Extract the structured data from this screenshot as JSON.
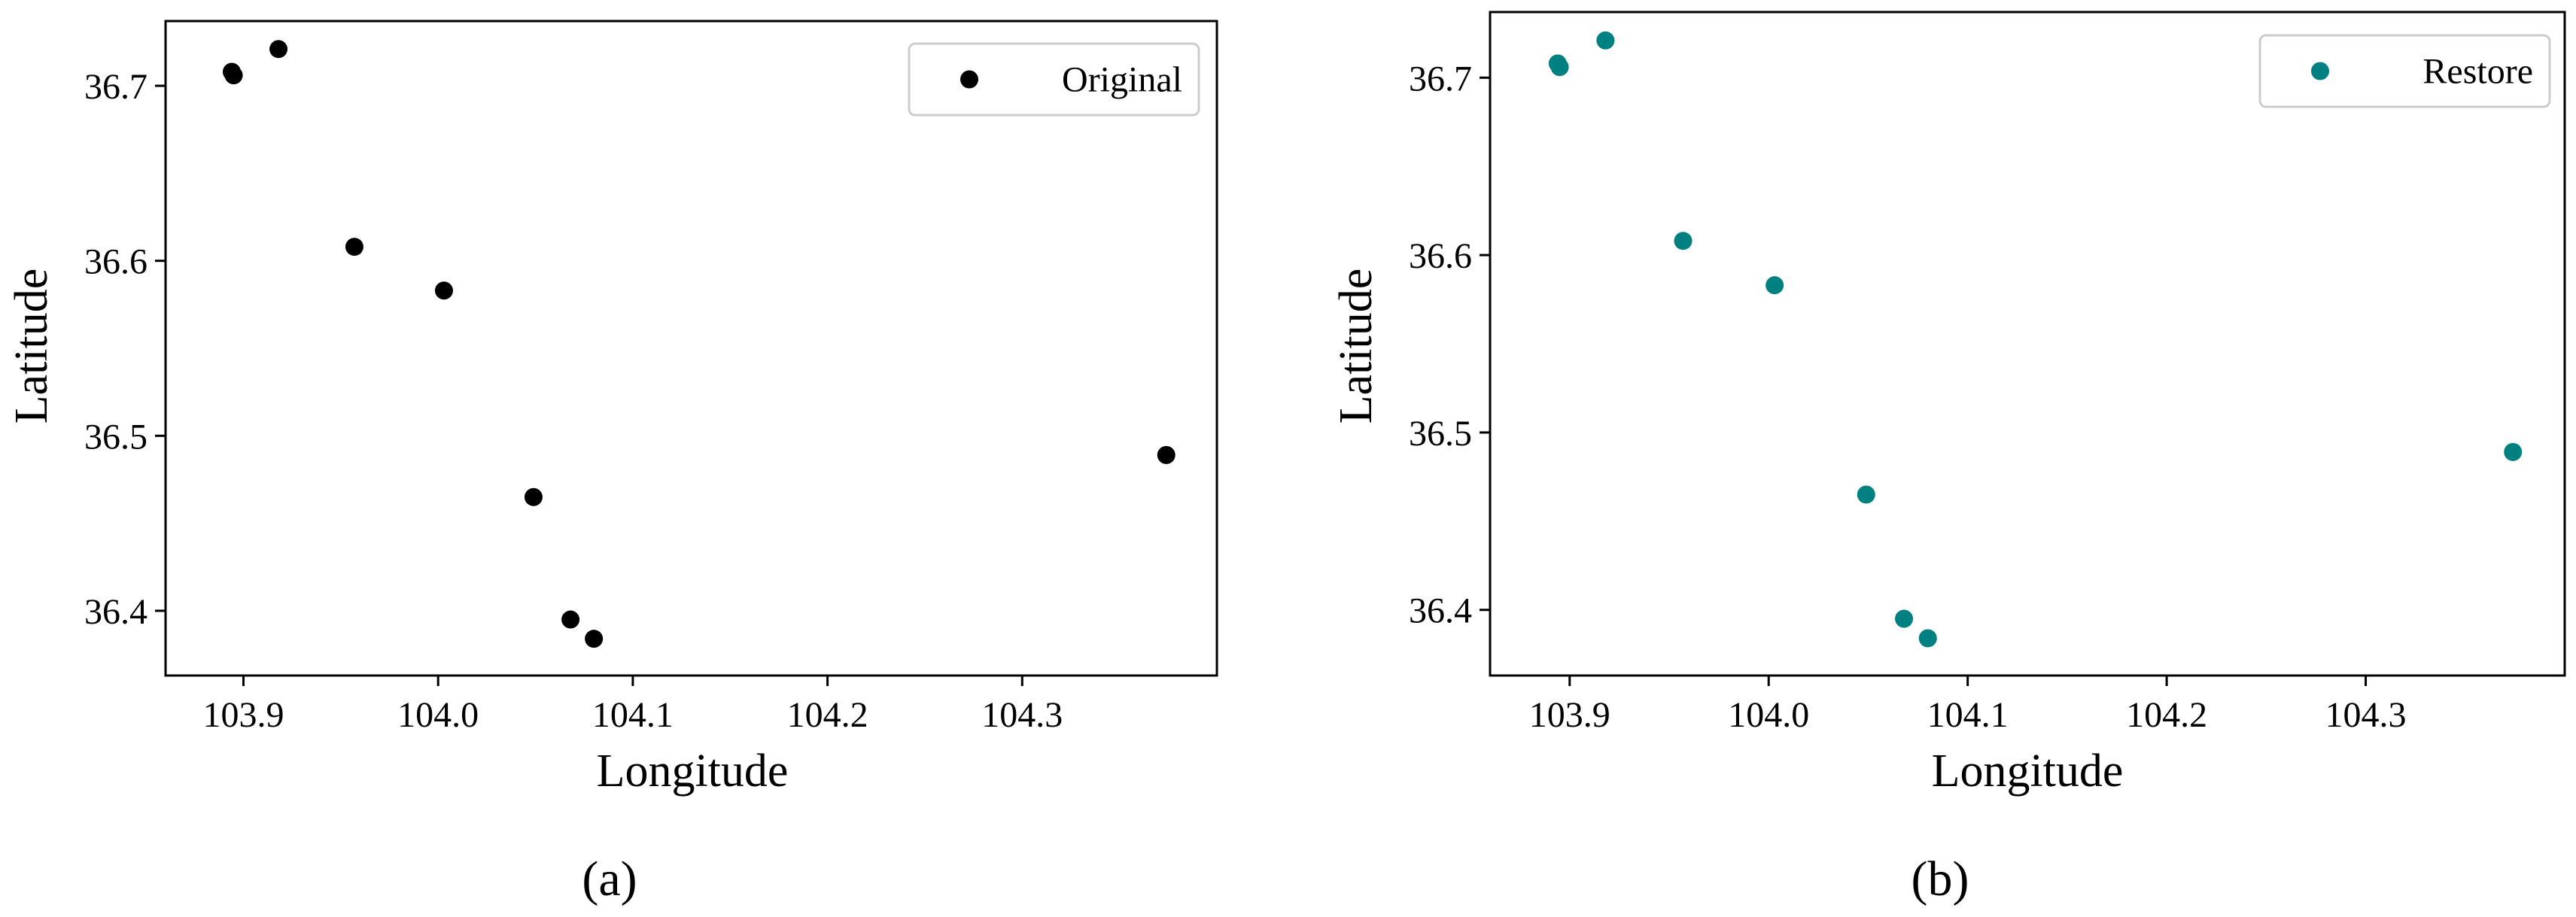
{
  "chart_data": [
    {
      "type": "scatter",
      "panel_label": "(a)",
      "xlabel": "Longitude",
      "ylabel": "Latitude",
      "xlim": [
        103.86,
        104.4
      ],
      "ylim": [
        36.363,
        36.737
      ],
      "xticks": [
        103.9,
        104.0,
        104.1,
        104.2,
        104.3
      ],
      "xtick_labels": [
        "103.9",
        "104.0",
        "104.1",
        "104.2",
        "104.3"
      ],
      "yticks": [
        36.4,
        36.5,
        36.6,
        36.7
      ],
      "ytick_labels": [
        "36.4",
        "36.5",
        "36.6",
        "36.7"
      ],
      "grid": false,
      "legend_position": "top-right",
      "series": [
        {
          "name": "Original",
          "color": "#000000",
          "x": [
            103.894,
            103.895,
            103.918,
            103.957,
            104.003,
            104.049,
            104.068,
            104.08,
            104.374
          ],
          "y": [
            36.708,
            36.706,
            36.721,
            36.608,
            36.583,
            36.465,
            36.395,
            36.384,
            36.489
          ]
        }
      ]
    },
    {
      "type": "scatter",
      "panel_label": "(b)",
      "xlabel": "Longitude",
      "ylabel": "Latitude",
      "xlim": [
        103.86,
        104.4
      ],
      "ylim": [
        36.363,
        36.737
      ],
      "xticks": [
        103.9,
        104.0,
        104.1,
        104.2,
        104.3
      ],
      "xtick_labels": [
        "103.9",
        "104.0",
        "104.1",
        "104.2",
        "104.3"
      ],
      "yticks": [
        36.4,
        36.5,
        36.6,
        36.7
      ],
      "ytick_labels": [
        "36.4",
        "36.5",
        "36.6",
        "36.7"
      ],
      "grid": false,
      "legend_position": "top-right",
      "series": [
        {
          "name": "Restore",
          "color": "#008080",
          "x": [
            103.894,
            103.895,
            103.918,
            103.957,
            104.003,
            104.049,
            104.068,
            104.08,
            104.374
          ],
          "y": [
            36.708,
            36.706,
            36.721,
            36.608,
            36.583,
            36.465,
            36.395,
            36.384,
            36.489
          ]
        }
      ]
    }
  ]
}
